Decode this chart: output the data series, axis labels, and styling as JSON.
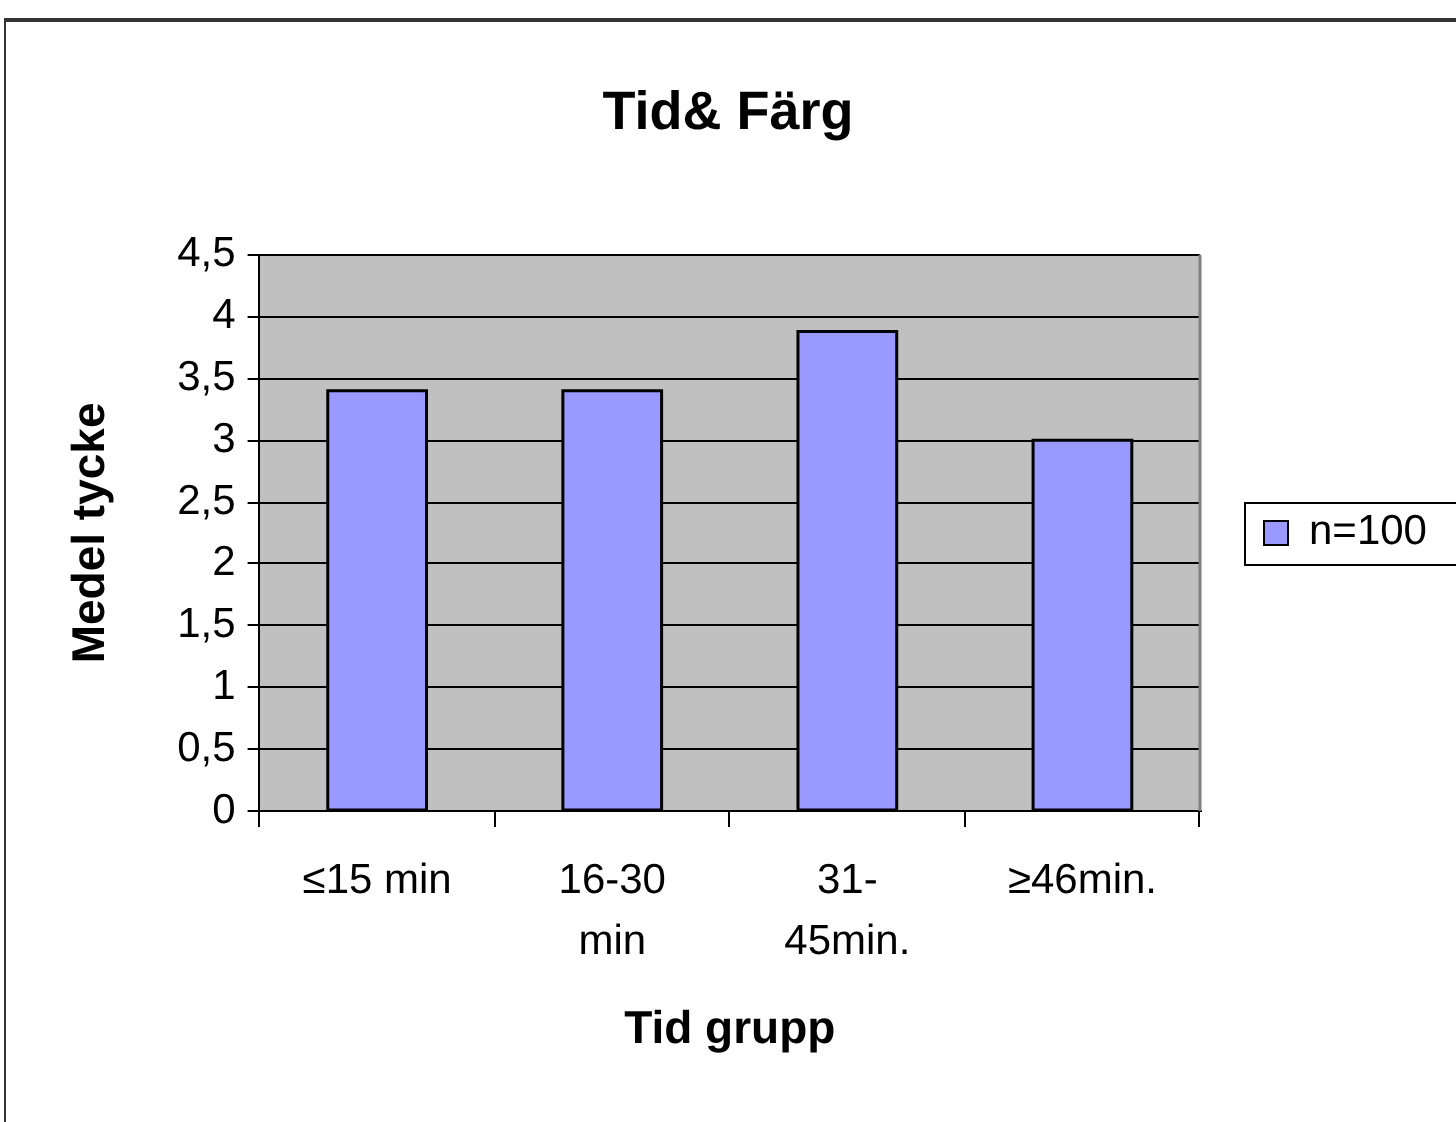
{
  "chart_data": {
    "type": "bar",
    "title": "Tid& Färg",
    "xlabel": "Tid grupp",
    "ylabel": "Medel tycke",
    "categories": [
      "≤15 min",
      "16-30 min",
      "31-45min.",
      "≥46min."
    ],
    "series": [
      {
        "name": "n=100",
        "color": "#9999ff",
        "values": [
          3.4,
          3.4,
          3.88,
          3.0
        ]
      }
    ],
    "ylim": [
      0,
      4.5
    ],
    "yticks": [
      0,
      {
        "value": 0.5,
        "label": "0,5"
      },
      1,
      {
        "value": 1.5,
        "label": "1,5"
      },
      2,
      {
        "value": 2.5,
        "label": "2,5"
      },
      3,
      {
        "value": 3.5,
        "label": "3,5"
      },
      4,
      {
        "value": 4.5,
        "label": "4,5"
      }
    ],
    "grid": "y",
    "legend": "right"
  }
}
